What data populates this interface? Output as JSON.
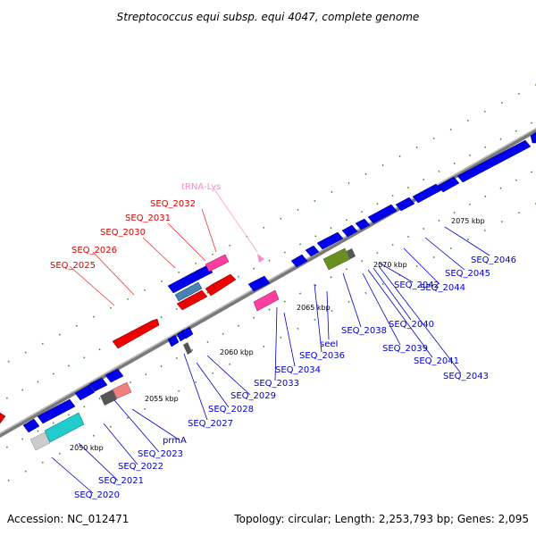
{
  "title": "Streptococcus equi subsp. equi 4047, complete genome",
  "footer": {
    "accession": "Accession: NC_012471",
    "topology": "Topology: circular; Length: 2,253,793 bp; Genes: 2,095"
  },
  "scale": {
    "kbp_2050": "2050 kbp",
    "kbp_2055": "2055 kbp",
    "kbp_2060": "2060 kbp",
    "kbp_2065": "2065 kbp",
    "kbp_2070": "2070 kbp",
    "kbp_2075": "2075 kbp"
  },
  "labels": {
    "trna_lys": "tRNA-Lys",
    "seq_2032": "SEQ_2032",
    "seq_2031": "SEQ_2031",
    "seq_2030": "SEQ_2030",
    "seq_2026": "SEQ_2026",
    "seq_2025": "SEQ_2025",
    "seq_2046": "SEQ_2046",
    "seq_2045": "SEQ_2045",
    "seq_2044": "SEQ_2044",
    "seq_2042": "SEQ_2042",
    "seq_2040": "SEQ_2040",
    "seq_2038": "SEQ_2038",
    "seq_2039": "SEQ_2039",
    "seq_2041": "SEQ_2041",
    "seq_2043": "SEQ_2043",
    "seel": "seeI",
    "seq_2036": "SEQ_2036",
    "seq_2034": "SEQ_2034",
    "seq_2033": "SEQ_2033",
    "seq_2029": "SEQ_2029",
    "seq_2028": "SEQ_2028",
    "seq_2027": "SEQ_2027",
    "prma": "prmA",
    "seq_2023": "SEQ_2023",
    "seq_2022": "SEQ_2022",
    "seq_2021": "SEQ_2021",
    "seq_2020": "SEQ_2020"
  },
  "colors": {
    "forward_gene": "#0000ee",
    "reverse_gene": "#ee0000",
    "trna": "#ff3fa0",
    "rrna_like": "#22cccc",
    "other_green": "#6b8e23",
    "grey_feature": "#555555",
    "salmon_feature": "#f08080",
    "backbone": "#888888",
    "forward_label": "#0000cc",
    "reverse_label": "#dd0000",
    "trna_label": "#ff88cc"
  }
}
